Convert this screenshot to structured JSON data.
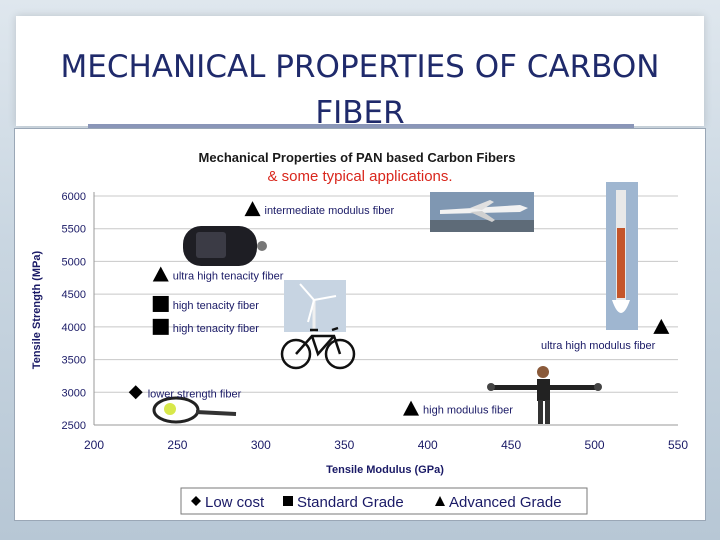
{
  "slide": {
    "title": "MECHANICAL PROPERTIES OF CARBON FIBER"
  },
  "chart_data": {
    "type": "scatter",
    "title": "Mechanical Properties of PAN based Carbon Fibers",
    "subtitle": "& some typical applications.",
    "xlabel": "Tensile Modulus (GPa)",
    "ylabel": "Tensile Strength (MPa)",
    "xlim": [
      200,
      550
    ],
    "ylim": [
      2500,
      6000
    ],
    "x_ticks": [
      200,
      250,
      300,
      350,
      400,
      450,
      500,
      550
    ],
    "y_ticks": [
      2500,
      3000,
      3500,
      4000,
      4500,
      5000,
      5500,
      6000
    ],
    "grid": "horizontal",
    "legend_position": "bottom",
    "legend": [
      {
        "label": "Low cost",
        "marker": "diamond"
      },
      {
        "label": "Standard Grade",
        "marker": "square"
      },
      {
        "label": "Advanced Grade",
        "marker": "triangle"
      }
    ],
    "points": [
      {
        "x": 225,
        "y": 3000,
        "marker": "diamond",
        "label": "lower strength fiber"
      },
      {
        "x": 240,
        "y": 4350,
        "marker": "square",
        "label": "high tenacity fiber"
      },
      {
        "x": 240,
        "y": 4000,
        "marker": "square",
        "label": "high tenacity fiber"
      },
      {
        "x": 240,
        "y": 4800,
        "marker": "triangle",
        "label": "ultra high tenacity fiber"
      },
      {
        "x": 295,
        "y": 5800,
        "marker": "triangle",
        "label": "intermediate modulus fiber"
      },
      {
        "x": 390,
        "y": 2750,
        "marker": "triangle",
        "label": "high modulus fiber"
      },
      {
        "x": 540,
        "y": 4000,
        "marker": "triangle",
        "label": "ultra high modulus fiber"
      }
    ],
    "colors": {
      "subtitle": "#d9261c",
      "marker": "#000000",
      "grid": "#c8c8c8",
      "text": "#1a1a66"
    }
  },
  "icons": {
    "applications": [
      "pressure-tank-icon",
      "airplane-icon",
      "wind-turbine-icon",
      "bicycle-icon",
      "tennis-racket-icon",
      "rocket-icon",
      "person-with-pipe-icon"
    ]
  }
}
